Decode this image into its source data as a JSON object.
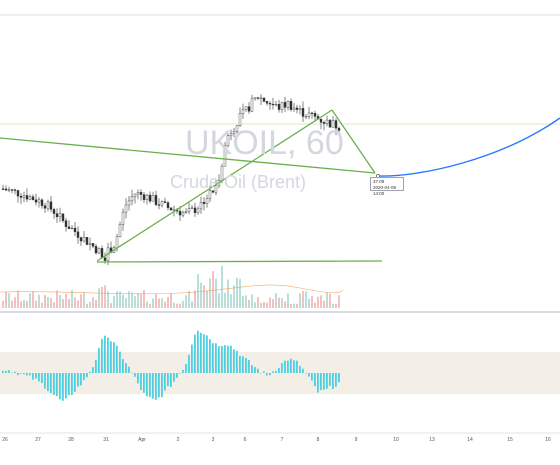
{
  "watermark": {
    "symbol": "UKOIL, 60",
    "subtitle": "Crude Oil (Brent)"
  },
  "tooltip": {
    "price": "37.09",
    "datetime": "2020-04-09 14:00"
  },
  "colors": {
    "up": "#26a69a",
    "down": "#ef5350",
    "trendline": "#6ab04c",
    "curve": "#2979ff",
    "histogram": "#4dd0e1",
    "band": "#f3efe6",
    "hline": "#cfe0b4"
  },
  "chart_data": {
    "type": "candlestick",
    "x_ticks": [
      "26",
      "27",
      "28",
      "31",
      "Apr",
      "2",
      "3",
      "6",
      "7",
      "8",
      "9",
      "10",
      "13",
      "14",
      "15",
      "16"
    ],
    "approx_close_path": [
      27.8,
      27.6,
      27.4,
      27.1,
      26.8,
      26.2,
      25.4,
      24.8,
      24.2,
      23.6,
      23.0,
      23.9,
      26.6,
      27.5,
      27.3,
      26.9,
      26.5,
      26.3,
      26.0,
      26.4,
      27.2,
      27.9,
      31.5,
      32.6,
      33.5,
      34.4,
      34.0,
      33.6,
      33.9,
      33.4,
      33.1,
      32.8,
      32.5,
      32.3
    ],
    "price_range": [
      22,
      37
    ],
    "trendlines": [
      {
        "from_price": 30.5,
        "to_price": 27.5
      },
      {
        "from_price": 23.0,
        "to_price": 32.5
      },
      {
        "from_price": 32.5,
        "to_price": 27.0
      },
      {
        "from_price": 23.0,
        "to_price": 23.0
      }
    ],
    "projection_curve_end_price": 30.5
  }
}
